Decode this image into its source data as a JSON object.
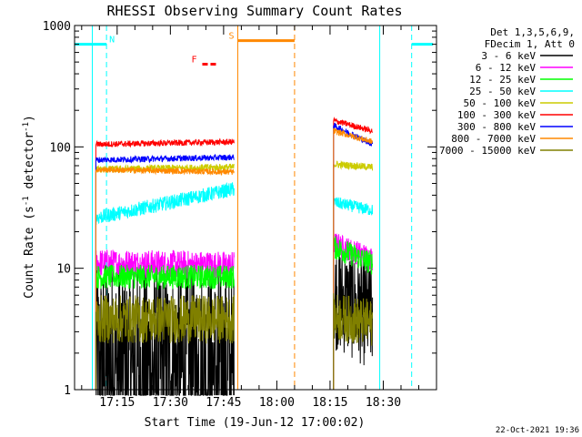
{
  "chart_data": {
    "type": "line",
    "title": "RHESSI Observing Summary Count Rates",
    "xlabel": "Start Time (19-Jun-12 17:00:02)",
    "ylabel": "Count Rate (s⁻¹ detector⁻¹)",
    "ylabel_main": "Count Rate (s",
    "ylabel_mid": " detector",
    "ylabel_end": ")",
    "ylabel_sup": "-1",
    "yscale": "log",
    "ylim": [
      1,
      1000
    ],
    "yticks": [
      "1",
      "10",
      "100",
      "1000"
    ],
    "xlim_minutes": [
      3,
      105
    ],
    "xticks": [
      {
        "label": "17:15",
        "minute": 15
      },
      {
        "label": "17:30",
        "minute": 30
      },
      {
        "label": "17:45",
        "minute": 45
      },
      {
        "label": "18:00",
        "minute": 60
      },
      {
        "label": "18:15",
        "minute": 75
      },
      {
        "label": "18:30",
        "minute": 90
      }
    ],
    "legend_header": [
      "Det 1,3,5,6,9,",
      "FDecim 1, Att 0"
    ],
    "legend_position": "outside-right",
    "series": [
      {
        "name": "3 - 6 keV",
        "color": "#000000",
        "segments": [
          {
            "t0": 9,
            "t1": 48,
            "start": 1.5,
            "end": 1.3,
            "noise": 0.9
          },
          {
            "t0": 76,
            "t1": 87,
            "start": 6,
            "end": 4,
            "noise": 0.45
          }
        ]
      },
      {
        "name": "6 - 12 keV",
        "color": "#ff00ff",
        "segments": [
          {
            "t0": 9,
            "t1": 48,
            "start": 11,
            "end": 10.5,
            "noise": 0.12
          },
          {
            "t0": 76,
            "t1": 87,
            "start": 16,
            "end": 12,
            "noise": 0.1
          }
        ]
      },
      {
        "name": "12 - 25 keV",
        "color": "#00ff00",
        "segments": [
          {
            "t0": 9,
            "t1": 48,
            "start": 8.5,
            "end": 8.5,
            "noise": 0.1
          },
          {
            "t0": 76,
            "t1": 87,
            "start": 15,
            "end": 11,
            "noise": 0.1
          }
        ]
      },
      {
        "name": "25 - 50 keV",
        "color": "#00ffff",
        "segments": [
          {
            "t0": 9,
            "t1": 48,
            "start": 26,
            "end": 45,
            "noise": 0.06
          },
          {
            "t0": 76,
            "t1": 87,
            "start": 35,
            "end": 30,
            "noise": 0.05
          }
        ]
      },
      {
        "name": "50 - 100 keV",
        "color": "#cccc00",
        "segments": [
          {
            "t0": 9,
            "t1": 48,
            "start": 65,
            "end": 68,
            "noise": 0.03
          },
          {
            "t0": 76,
            "t1": 87,
            "start": 72,
            "end": 68,
            "noise": 0.03
          }
        ]
      },
      {
        "name": "100 - 300 keV",
        "color": "#ff0000",
        "segments": [
          {
            "t0": 9,
            "t1": 48,
            "start": 105,
            "end": 110,
            "noise": 0.025
          },
          {
            "t0": 76,
            "t1": 87,
            "start": 165,
            "end": 135,
            "noise": 0.025
          }
        ]
      },
      {
        "name": "300 - 800 keV",
        "color": "#0000ff",
        "segments": [
          {
            "t0": 9,
            "t1": 48,
            "start": 78,
            "end": 82,
            "noise": 0.025
          },
          {
            "t0": 76,
            "t1": 87,
            "start": 150,
            "end": 105,
            "noise": 0.025
          }
        ]
      },
      {
        "name": "800 - 7000 keV",
        "color": "#ff8800",
        "segments": [
          {
            "t0": 9,
            "t1": 48,
            "start": 65,
            "end": 62,
            "noise": 0.025
          },
          {
            "t0": 76,
            "t1": 87,
            "start": 135,
            "end": 110,
            "noise": 0.025
          }
        ]
      },
      {
        "name": "7000 - 15000 keV",
        "color": "#808000",
        "segments": [
          {
            "t0": 9,
            "t1": 48,
            "start": 3.8,
            "end": 3.8,
            "noise": 0.2
          },
          {
            "t0": 76,
            "t1": 87,
            "start": 4,
            "end": 3.5,
            "noise": 0.2
          }
        ]
      }
    ],
    "flags": [
      {
        "label": "N",
        "color": "#00ffff",
        "t0": 3,
        "t1": 12,
        "level": 700
      },
      {
        "label": "S",
        "color": "#ff8800",
        "t0": 49,
        "t1": 65,
        "level": 750
      },
      {
        "label": "F",
        "color": "#ff0000",
        "t0": 39,
        "t1": 43,
        "level": 480
      },
      {
        "label": "",
        "color": "#00ffff",
        "t0": 98,
        "t1": 104,
        "level": 700
      }
    ],
    "vlines": [
      {
        "minute": 8,
        "color": "#00ffff",
        "style": "solid"
      },
      {
        "minute": 12,
        "color": "#00ffff",
        "style": "dashed"
      },
      {
        "minute": 49,
        "color": "#ff8800",
        "style": "solid"
      },
      {
        "minute": 65,
        "color": "#ff8800",
        "style": "dashed"
      },
      {
        "minute": 89,
        "color": "#00ffff",
        "style": "solid"
      },
      {
        "minute": 98,
        "color": "#00ffff",
        "style": "dashed"
      }
    ]
  },
  "timestamp": "22-Oct-2021 19:36"
}
